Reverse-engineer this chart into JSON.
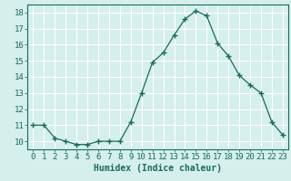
{
  "x": [
    0,
    1,
    2,
    3,
    4,
    5,
    6,
    7,
    8,
    9,
    10,
    11,
    12,
    13,
    14,
    15,
    16,
    17,
    18,
    19,
    20,
    21,
    22,
    23
  ],
  "y": [
    11.0,
    11.0,
    10.2,
    10.0,
    9.8,
    9.8,
    10.0,
    10.0,
    10.0,
    11.2,
    13.0,
    14.9,
    15.5,
    16.6,
    17.6,
    18.1,
    17.8,
    16.1,
    15.3,
    14.1,
    13.5,
    13.0,
    11.2,
    10.4
  ],
  "line_color": "#1a6b5a",
  "marker": "+",
  "marker_size": 4,
  "xlabel": "Humidex (Indice chaleur)",
  "xlim": [
    -0.5,
    23.5
  ],
  "ylim": [
    9.5,
    18.5
  ],
  "yticks": [
    10,
    11,
    12,
    13,
    14,
    15,
    16,
    17,
    18
  ],
  "xticks": [
    0,
    1,
    2,
    3,
    4,
    5,
    6,
    7,
    8,
    9,
    10,
    11,
    12,
    13,
    14,
    15,
    16,
    17,
    18,
    19,
    20,
    21,
    22,
    23
  ],
  "bg_color": "#d4efec",
  "grid_color": "#ffffff",
  "tick_color": "#1a6b5a",
  "label_color": "#1a6b5a",
  "xlabel_fontsize": 7,
  "tick_fontsize": 6.5
}
